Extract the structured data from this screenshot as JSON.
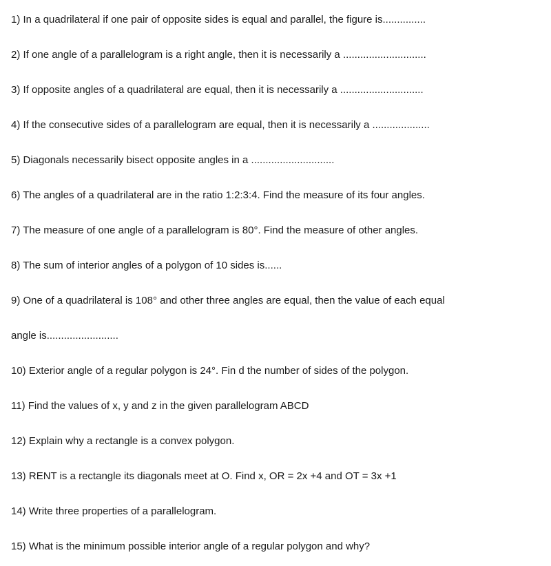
{
  "questions": [
    {
      "num": "1)",
      "text": "In a quadrilateral if one pair of opposite sides is equal and parallel, the figure is...............",
      "fontsize": 15
    },
    {
      "num": "2)",
      "text": "If one angle of a parallelogram is a right angle, then it is necessarily a .............................",
      "fontsize": 15
    },
    {
      "num": "3)",
      "text": "If opposite angles of a quadrilateral are equal, then it is necessarily a .............................",
      "fontsize": 15
    },
    {
      "num": "4)",
      "text": "If the consecutive sides of a parallelogram are equal, then it is necessarily a ....................",
      "fontsize": 15
    },
    {
      "num": "5)",
      "text": "Diagonals necessarily bisect opposite angles in a .............................",
      "fontsize": 15
    },
    {
      "num": "6)",
      "text": "The angles of a quadrilateral are in the ratio 1:2:3:4. Find the measure of its four angles.",
      "fontsize": 15
    },
    {
      "num": "7)",
      "text": "The measure of one angle of a parallelogram is 80°. Find the measure of other angles.",
      "fontsize": 15
    },
    {
      "num": "8)",
      "text": "The sum of interior angles of a polygon of 10 sides is......",
      "fontsize": 15
    },
    {
      "num": "9)",
      "text": "One of a quadrilateral is 108° and other three angles are equal, then the value of each equal",
      "fontsize": 15
    },
    {
      "num": "",
      "text": "angle is.........................",
      "fontsize": 15
    },
    {
      "num": "10)",
      "text": "Exterior angle of a regular polygon is 24°. Fin d the number of sides of the polygon.",
      "fontsize": 15
    },
    {
      "num": "11)",
      "text": "Find the values of x, y and z in the given parallelogram ABCD",
      "fontsize": 15
    },
    {
      "num": "12)",
      "text": "Explain why a rectangle is a convex polygon.",
      "fontsize": 15
    },
    {
      "num": "13)",
      "text": "RENT is a rectangle its diagonals meet at O. Find x, OR = 2x +4 and OT = 3x +1",
      "fontsize": 15
    },
    {
      "num": "14)",
      "text": "Write three properties of a parallelogram.",
      "fontsize": 15
    },
    {
      "num": "15)",
      "text": "What is the minimum possible interior angle of a regular polygon and why?",
      "fontsize": 15
    }
  ],
  "style": {
    "text_color": "#1a1a1a",
    "background_color": "#ffffff",
    "line_spacing": 30,
    "font_family": "Arial"
  }
}
